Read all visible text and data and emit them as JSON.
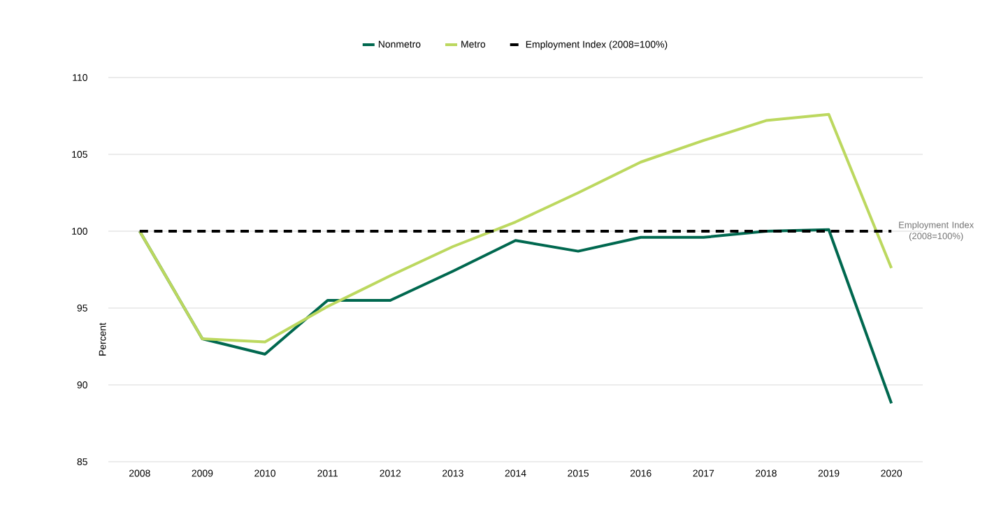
{
  "chart_data": {
    "type": "line",
    "ylabel": "Percent",
    "categories": [
      "2008",
      "2009",
      "2010",
      "2011",
      "2012",
      "2013",
      "2014",
      "2015",
      "2016",
      "2017",
      "2018",
      "2019",
      "2020"
    ],
    "series": [
      {
        "name": "Nonmetro",
        "color": "#00684f",
        "values": [
          100,
          93.0,
          92.0,
          95.5,
          95.5,
          97.4,
          99.4,
          98.7,
          99.6,
          99.6,
          100.0,
          100.1,
          88.8
        ]
      },
      {
        "name": "Metro",
        "color": "#bcd85f",
        "values": [
          100,
          93.0,
          92.8,
          95.1,
          97.1,
          99.0,
          100.6,
          102.5,
          104.5,
          105.9,
          107.2,
          107.6,
          97.6
        ]
      },
      {
        "name": "Employment Index (2008=100%)",
        "color": "#000000",
        "line_style": "dashed",
        "values": [
          100,
          100,
          100,
          100,
          100,
          100,
          100,
          100,
          100,
          100,
          100,
          100,
          100
        ]
      }
    ],
    "ylim": [
      85,
      110
    ],
    "yticks": [
      85,
      90,
      95,
      100,
      105,
      110
    ],
    "grid": "y",
    "legend": "top",
    "marker": "none",
    "annotations": [
      {
        "text": "Employment Index (2008=100%)",
        "x": "2020",
        "y": 100
      }
    ]
  }
}
